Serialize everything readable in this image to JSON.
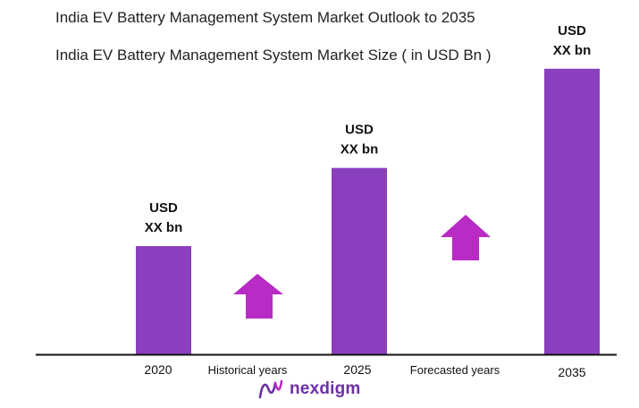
{
  "header": {
    "title": "India EV Battery Management System Market Outlook to 2035",
    "subtitle": "India EV Battery Management System Market Size ( in USD Bn )"
  },
  "chart_data": {
    "type": "bar",
    "categories": [
      "2020",
      "2025",
      "2035"
    ],
    "values": [
      3.6,
      6.2,
      9.5
    ],
    "value_labels": [
      [
        "USD",
        "XX bn"
      ],
      [
        "USD",
        "XX bn"
      ],
      [
        "USD",
        "XX bn"
      ]
    ],
    "period_labels": [
      "Historical years",
      "Forecasted years"
    ],
    "ylim": [
      0,
      10
    ],
    "grid": false,
    "bar_color": "#8a3fbf",
    "arrow_color": "#b82bc4"
  },
  "branding": {
    "logo_text": "nexdigm",
    "logo_icon": "nexdigm-logo-icon"
  }
}
